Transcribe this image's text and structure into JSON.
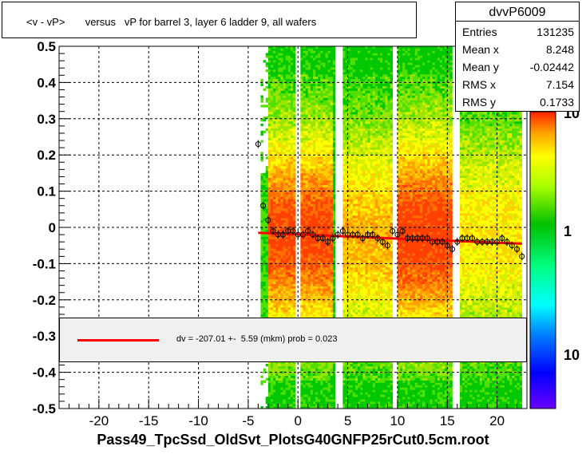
{
  "title": "<v - vP>       versus   vP for barrel 3, layer 6 ladder 9, all wafers",
  "stats": {
    "name": "dvvP6009",
    "rows": [
      {
        "key": "Entries",
        "value": "131235"
      },
      {
        "key": "Mean x",
        "value": "8.248"
      },
      {
        "key": "Mean y",
        "value": "-0.02442"
      },
      {
        "key": "RMS x",
        "value": "7.154"
      },
      {
        "key": "RMS y",
        "value": "0.1733"
      }
    ]
  },
  "fit": {
    "label": "dv = -207.01 +-  5.59 (mkm) prob = 0.023",
    "line_color": "#ff0000"
  },
  "xlabel": "Pass49_TpcSsd_OldSvt_PlotsG40GNFP25rCut0.5cm.root",
  "chart_data": {
    "type": "heatmap",
    "xlim": [
      -24,
      23
    ],
    "ylim": [
      -0.5,
      0.5
    ],
    "x_ticks": [
      "-20",
      "-15",
      "-10",
      "-5",
      "0",
      "5",
      "10",
      "15",
      "20"
    ],
    "y_ticks": [
      "0.5",
      "0.4",
      "0.3",
      "0.2",
      "0.1",
      "0",
      "-0.1",
      "-0.2",
      "-0.3",
      "-0.4",
      "-0.5"
    ],
    "z_ticks": [
      "10",
      "1",
      "10"
    ],
    "grid": true,
    "colors": {
      "profile": "#000000",
      "fit": "#ff0000",
      "frame": "#000000"
    },
    "profile_points": [
      {
        "x": -4.0,
        "y": 0.23
      },
      {
        "x": -3.5,
        "y": 0.06
      },
      {
        "x": -3.0,
        "y": 0.02
      },
      {
        "x": -2.5,
        "y": -0.01
      },
      {
        "x": -2.0,
        "y": -0.02
      },
      {
        "x": -1.5,
        "y": -0.02
      },
      {
        "x": -1.0,
        "y": -0.01
      },
      {
        "x": -0.5,
        "y": -0.01
      },
      {
        "x": 0.0,
        "y": -0.02
      },
      {
        "x": 0.5,
        "y": -0.02
      },
      {
        "x": 1.0,
        "y": -0.01
      },
      {
        "x": 1.5,
        "y": -0.02
      },
      {
        "x": 2.0,
        "y": -0.03
      },
      {
        "x": 2.5,
        "y": -0.03
      },
      {
        "x": 3.0,
        "y": -0.04
      },
      {
        "x": 3.5,
        "y": -0.03
      },
      {
        "x": 4.0,
        "y": -0.02
      },
      {
        "x": 4.5,
        "y": -0.01
      },
      {
        "x": 5.0,
        "y": -0.02
      },
      {
        "x": 5.5,
        "y": -0.02
      },
      {
        "x": 6.0,
        "y": -0.02
      },
      {
        "x": 6.5,
        "y": -0.03
      },
      {
        "x": 7.0,
        "y": -0.02
      },
      {
        "x": 7.5,
        "y": -0.02
      },
      {
        "x": 8.0,
        "y": -0.03
      },
      {
        "x": 8.5,
        "y": -0.04
      },
      {
        "x": 9.0,
        "y": -0.05
      },
      {
        "x": 9.5,
        "y": -0.01
      },
      {
        "x": 10.0,
        "y": -0.02
      },
      {
        "x": 10.5,
        "y": -0.01
      },
      {
        "x": 11.0,
        "y": -0.03
      },
      {
        "x": 11.5,
        "y": -0.03
      },
      {
        "x": 12.0,
        "y": -0.03
      },
      {
        "x": 12.5,
        "y": -0.03
      },
      {
        "x": 13.0,
        "y": -0.03
      },
      {
        "x": 13.5,
        "y": -0.04
      },
      {
        "x": 14.0,
        "y": -0.04
      },
      {
        "x": 14.5,
        "y": -0.04
      },
      {
        "x": 15.0,
        "y": -0.05
      },
      {
        "x": 15.5,
        "y": -0.06
      },
      {
        "x": 16.0,
        "y": -0.04
      },
      {
        "x": 16.5,
        "y": -0.03
      },
      {
        "x": 17.0,
        "y": -0.03
      },
      {
        "x": 17.5,
        "y": -0.03
      },
      {
        "x": 18.0,
        "y": -0.04
      },
      {
        "x": 18.5,
        "y": -0.04
      },
      {
        "x": 19.0,
        "y": -0.04
      },
      {
        "x": 19.5,
        "y": -0.04
      },
      {
        "x": 20.0,
        "y": -0.04
      },
      {
        "x": 20.5,
        "y": -0.03
      },
      {
        "x": 21.0,
        "y": -0.04
      },
      {
        "x": 21.5,
        "y": -0.05
      },
      {
        "x": 22.0,
        "y": -0.06
      },
      {
        "x": 22.5,
        "y": -0.08
      }
    ],
    "fit_line": {
      "x": [
        -4.0,
        22.5
      ],
      "y": [
        -0.015,
        -0.045
      ]
    },
    "fit_label": "dv = -207.01 +-  5.59 (mkm) prob = 0.023"
  }
}
